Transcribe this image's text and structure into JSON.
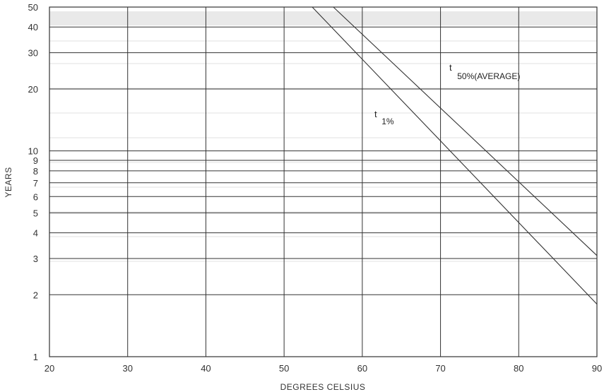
{
  "chart_data": {
    "type": "line",
    "title": "",
    "xlabel": "DEGREES CELSIUS",
    "ylabel": "YEARS",
    "xlim": [
      20,
      90
    ],
    "ylim": [
      1,
      50
    ],
    "yscale": "log",
    "grid": true,
    "x_ticks": [
      20,
      30,
      40,
      50,
      60,
      70,
      80,
      90
    ],
    "y_ticks": [
      1,
      2,
      3,
      4,
      5,
      6,
      7,
      8,
      9,
      10,
      20,
      30,
      40,
      50
    ],
    "series": [
      {
        "label_main": "t",
        "label_sub": "50%(AVERAGE)",
        "x": [
          53.6,
          90
        ],
        "y": [
          50,
          1.8
        ]
      },
      {
        "label_main": "t",
        "label_sub": "1%",
        "x": [
          56.3,
          90
        ],
        "y": [
          50,
          3.1
        ]
      }
    ]
  }
}
